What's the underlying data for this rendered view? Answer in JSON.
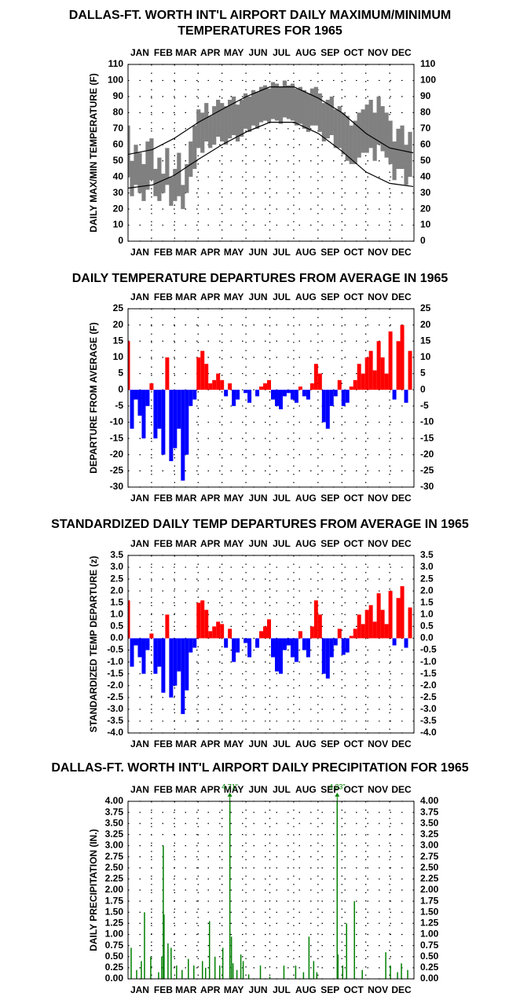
{
  "chart_data": [
    {
      "type": "line",
      "title": [
        "DALLAS-FT. WORTH INT'L AIRPORT DAILY MAXIMUM/MINIMUM",
        "TEMPERATURES FOR 1965"
      ],
      "y_label": "DAILY MAX/MIN TEMPERATURE (F)",
      "xlim": [
        1,
        366
      ],
      "xticks": [
        {
          "value": 16,
          "label": "JAN"
        },
        {
          "value": 46,
          "label": "FEB"
        },
        {
          "value": 75,
          "label": "MAR"
        },
        {
          "value": 106,
          "label": "APR"
        },
        {
          "value": 136,
          "label": "MAY"
        },
        {
          "value": 167,
          "label": "JUN"
        },
        {
          "value": 197,
          "label": "JUL"
        },
        {
          "value": 228,
          "label": "AUG"
        },
        {
          "value": 259,
          "label": "SEP"
        },
        {
          "value": 289,
          "label": "OCT"
        },
        {
          "value": 320,
          "label": "NOV"
        },
        {
          "value": 350,
          "label": "DEC"
        }
      ],
      "ylim": [
        0,
        110
      ],
      "yticks": [
        0,
        10,
        20,
        30,
        40,
        50,
        60,
        70,
        80,
        90,
        100,
        110
      ],
      "grid": true,
      "x": [
        1,
        6,
        11,
        16,
        21,
        26,
        31,
        36,
        41,
        46,
        51,
        56,
        61,
        66,
        71,
        76,
        81,
        86,
        91,
        96,
        101,
        106,
        111,
        116,
        121,
        126,
        131,
        136,
        141,
        146,
        151,
        156,
        161,
        166,
        171,
        176,
        181,
        186,
        191,
        196,
        201,
        206,
        211,
        216,
        221,
        226,
        231,
        236,
        241,
        246,
        251,
        256,
        261,
        266,
        271,
        276,
        281,
        286,
        291,
        296,
        301,
        306,
        311,
        316,
        321,
        326,
        331,
        336,
        341,
        346,
        351,
        356,
        361
      ],
      "band": {
        "color": "#808080",
        "high": [
          72,
          50,
          60,
          55,
          48,
          62,
          64,
          45,
          52,
          42,
          58,
          40,
          45,
          55,
          35,
          48,
          62,
          72,
          82,
          80,
          86,
          78,
          84,
          88,
          86,
          84,
          88,
          90,
          85,
          88,
          92,
          90,
          94,
          93,
          96,
          97,
          95,
          99,
          98,
          96,
          100,
          97,
          98,
          95,
          96,
          94,
          92,
          95,
          96,
          92,
          86,
          88,
          90,
          82,
          84,
          80,
          78,
          72,
          75,
          80,
          82,
          85,
          88,
          80,
          90,
          84,
          80,
          75,
          62,
          70,
          72,
          60,
          68
        ],
        "low": [
          40,
          28,
          35,
          30,
          25,
          32,
          38,
          28,
          25,
          30,
          35,
          22,
          25,
          28,
          20,
          30,
          40,
          45,
          58,
          55,
          62,
          58,
          60,
          65,
          62,
          60,
          64,
          66,
          62,
          65,
          70,
          68,
          72,
          70,
          74,
          75,
          74,
          76,
          75,
          73,
          77,
          76,
          75,
          72,
          73,
          70,
          68,
          72,
          72,
          68,
          62,
          64,
          66,
          58,
          58,
          54,
          50,
          48,
          48,
          52,
          55,
          55,
          58,
          50,
          60,
          56,
          52,
          48,
          38,
          45,
          45,
          35,
          40
        ]
      },
      "series": [
        {
          "color": "#000000",
          "x": [
            1,
            32,
            60,
            91,
            121,
            152,
            182,
            213,
            244,
            274,
            305,
            335,
            365
          ],
          "values": [
            54,
            57,
            64,
            74,
            82,
            90,
            96,
            96,
            89,
            80,
            67,
            58,
            55
          ]
        },
        {
          "color": "#000000",
          "x": [
            1,
            32,
            60,
            91,
            121,
            152,
            182,
            213,
            244,
            274,
            305,
            335,
            365
          ],
          "values": [
            33,
            35,
            41,
            51,
            60,
            68,
            74,
            74,
            67,
            56,
            43,
            36,
            34
          ]
        }
      ]
    },
    {
      "type": "bar",
      "title": [
        "DAILY TEMPERATURE DEPARTURES FROM AVERAGE IN 1965"
      ],
      "y_label": "DEPARTURE FROM AVERAGE (F)",
      "xlim": [
        1,
        366
      ],
      "xticks": [
        {
          "value": 16,
          "label": "JAN"
        },
        {
          "value": 46,
          "label": "FEB"
        },
        {
          "value": 75,
          "label": "MAR"
        },
        {
          "value": 106,
          "label": "APR"
        },
        {
          "value": 136,
          "label": "MAY"
        },
        {
          "value": 167,
          "label": "JUN"
        },
        {
          "value": 197,
          "label": "JUL"
        },
        {
          "value": 228,
          "label": "AUG"
        },
        {
          "value": 259,
          "label": "SEP"
        },
        {
          "value": 289,
          "label": "OCT"
        },
        {
          "value": 320,
          "label": "NOV"
        },
        {
          "value": 350,
          "label": "DEC"
        }
      ],
      "ylim": [
        -30,
        25
      ],
      "yticks": [
        -30,
        -25,
        -20,
        -15,
        -10,
        -5,
        0,
        5,
        10,
        15,
        20,
        25
      ],
      "grid": true,
      "colors": {
        "positive": "#ff0000",
        "negative": "#0000ff"
      },
      "x": [
        1,
        6,
        11,
        16,
        21,
        26,
        31,
        36,
        41,
        46,
        51,
        56,
        61,
        66,
        71,
        76,
        81,
        86,
        91,
        96,
        101,
        106,
        111,
        116,
        121,
        126,
        131,
        136,
        141,
        146,
        151,
        156,
        161,
        166,
        171,
        176,
        181,
        186,
        191,
        196,
        201,
        206,
        211,
        216,
        221,
        226,
        231,
        236,
        241,
        246,
        251,
        256,
        261,
        266,
        271,
        276,
        281,
        286,
        291,
        296,
        301,
        306,
        311,
        316,
        321,
        326,
        331,
        336,
        341,
        346,
        351,
        356,
        361
      ],
      "values": [
        15,
        -12,
        -3,
        -8,
        -15,
        -5,
        2,
        -15,
        -12,
        -20,
        10,
        -22,
        -18,
        -12,
        -28,
        -20,
        -5,
        -3,
        10,
        12,
        8,
        2,
        3,
        5,
        3,
        -2,
        2,
        -5,
        -3,
        0,
        -1,
        -4,
        0,
        -2,
        1,
        2,
        3,
        -3,
        -5,
        -6,
        -2,
        -1,
        -3,
        -4,
        1,
        -2,
        -3,
        2,
        8,
        5,
        -10,
        -12,
        -5,
        -2,
        3,
        -5,
        -4,
        1,
        3,
        8,
        5,
        10,
        12,
        6,
        15,
        10,
        5,
        18,
        -3,
        15,
        20,
        -4,
        12
      ]
    },
    {
      "type": "bar",
      "title": [
        "STANDARDIZED DAILY TEMP DEPARTURES FROM AVERAGE IN 1965"
      ],
      "y_label": "STANDARDIZED TEMP DEPARTURE (z)",
      "xlim": [
        1,
        366
      ],
      "xticks": [
        {
          "value": 16,
          "label": "JAN"
        },
        {
          "value": 46,
          "label": "FEB"
        },
        {
          "value": 75,
          "label": "MAR"
        },
        {
          "value": 106,
          "label": "APR"
        },
        {
          "value": 136,
          "label": "MAY"
        },
        {
          "value": 167,
          "label": "JUN"
        },
        {
          "value": 197,
          "label": "JUL"
        },
        {
          "value": 228,
          "label": "AUG"
        },
        {
          "value": 259,
          "label": "SEP"
        },
        {
          "value": 289,
          "label": "OCT"
        },
        {
          "value": 320,
          "label": "NOV"
        },
        {
          "value": 350,
          "label": "DEC"
        }
      ],
      "ylim": [
        -4,
        3.5
      ],
      "yticks": [
        {
          "value": -4,
          "label": "-4.0"
        },
        -3.5,
        {
          "value": -3,
          "label": "-3.0"
        },
        -2.5,
        {
          "value": -2,
          "label": "-2.0"
        },
        -1.5,
        {
          "value": -1,
          "label": "-1.0"
        },
        -0.5,
        {
          "value": 0,
          "label": "0.0"
        },
        0.5,
        {
          "value": 1,
          "label": "1.0"
        },
        1.5,
        {
          "value": 2,
          "label": "2.0"
        },
        2.5,
        {
          "value": 3,
          "label": "3.0"
        },
        3.5
      ],
      "grid": true,
      "colors": {
        "positive": "#ff0000",
        "negative": "#0000ff"
      },
      "x": [
        1,
        6,
        11,
        16,
        21,
        26,
        31,
        36,
        41,
        46,
        51,
        56,
        61,
        66,
        71,
        76,
        81,
        86,
        91,
        96,
        101,
        106,
        111,
        116,
        121,
        126,
        131,
        136,
        141,
        146,
        151,
        156,
        161,
        166,
        171,
        176,
        181,
        186,
        191,
        196,
        201,
        206,
        211,
        216,
        221,
        226,
        231,
        236,
        241,
        246,
        251,
        256,
        261,
        266,
        271,
        276,
        281,
        286,
        291,
        296,
        301,
        306,
        311,
        316,
        321,
        326,
        331,
        336,
        341,
        346,
        351,
        356,
        361
      ],
      "values": [
        1.6,
        -1.2,
        -0.3,
        -0.8,
        -1.5,
        -0.5,
        0.2,
        -1.5,
        -1.2,
        -2.3,
        1.0,
        -2.5,
        -2.0,
        -1.4,
        -3.2,
        -2.2,
        -0.6,
        -0.4,
        1.5,
        1.6,
        1.2,
        0.3,
        0.5,
        0.7,
        0.6,
        -0.4,
        0.4,
        -1.0,
        -0.6,
        0.0,
        -0.2,
        -0.8,
        0.0,
        -0.4,
        0.3,
        0.5,
        0.8,
        -0.8,
        -1.4,
        -1.5,
        -0.5,
        -0.3,
        -0.8,
        -1.0,
        0.3,
        -0.5,
        -0.8,
        0.5,
        1.6,
        1.0,
        -1.5,
        -1.7,
        -0.8,
        -0.3,
        0.4,
        -0.7,
        -0.6,
        0.1,
        0.4,
        1.0,
        0.6,
        1.2,
        1.4,
        0.7,
        1.9,
        1.2,
        0.6,
        2.0,
        -0.3,
        1.7,
        2.2,
        -0.4,
        1.3
      ]
    },
    {
      "type": "bar",
      "title": [
        "DALLAS-FT. WORTH INT'L AIRPORT DAILY PRECIPITATION FOR 1965"
      ],
      "y_label": "DAILY PRECIPITATION (IN.)",
      "xlim": [
        1,
        366
      ],
      "xticks": [
        {
          "value": 16,
          "label": "JAN"
        },
        {
          "value": 46,
          "label": "FEB"
        },
        {
          "value": 75,
          "label": "MAR"
        },
        {
          "value": 106,
          "label": "APR"
        },
        {
          "value": 136,
          "label": "MAY"
        },
        {
          "value": 167,
          "label": "JUN"
        },
        {
          "value": 197,
          "label": "JUL"
        },
        {
          "value": 228,
          "label": "AUG"
        },
        {
          "value": 259,
          "label": "SEP"
        },
        {
          "value": 289,
          "label": "OCT"
        },
        {
          "value": 320,
          "label": "NOV"
        },
        {
          "value": 350,
          "label": "DEC"
        }
      ],
      "ylim": [
        0,
        4
      ],
      "yticks": [
        {
          "value": 0,
          "label": "0.00"
        },
        {
          "value": 0.25,
          "label": "0.25"
        },
        {
          "value": 0.5,
          "label": "0.50"
        },
        {
          "value": 0.75,
          "label": "0.75"
        },
        {
          "value": 1,
          "label": "1.00"
        },
        {
          "value": 1.25,
          "label": "1.25"
        },
        {
          "value": 1.5,
          "label": "1.50"
        },
        {
          "value": 1.75,
          "label": "1.75"
        },
        {
          "value": 2,
          "label": "2.00"
        },
        {
          "value": 2.25,
          "label": "2.25"
        },
        {
          "value": 2.5,
          "label": "2.50"
        },
        {
          "value": 2.75,
          "label": "2.75"
        },
        {
          "value": 3,
          "label": "3.00"
        },
        {
          "value": 3.25,
          "label": "3.25"
        },
        {
          "value": 3.5,
          "label": "3.50"
        },
        {
          "value": 3.75,
          "label": "3.75"
        },
        {
          "value": 4,
          "label": "4.00"
        }
      ],
      "grid": true,
      "color": "#008000",
      "x": [
        5,
        12,
        18,
        22,
        30,
        40,
        44,
        46,
        47,
        52,
        56,
        63,
        70,
        78,
        85,
        96,
        100,
        105,
        112,
        118,
        122,
        131,
        133,
        135,
        140,
        145,
        148,
        155,
        170,
        182,
        200,
        215,
        225,
        232,
        238,
        242,
        268,
        269,
        275,
        280,
        290,
        300,
        330,
        336,
        345,
        350,
        358
      ],
      "values": [
        0.7,
        0.2,
        0.4,
        1.5,
        0.5,
        0.15,
        0.5,
        3.0,
        1.45,
        0.8,
        0.7,
        0.3,
        0.2,
        0.45,
        0.3,
        0.4,
        0.25,
        1.3,
        0.5,
        0.3,
        0.7,
        4.71,
        0.95,
        0.35,
        0.2,
        0.55,
        0.4,
        0.1,
        0.3,
        0.05,
        0.3,
        0.3,
        0.15,
        0.95,
        0.4,
        0.15,
        4.23,
        0.55,
        0.3,
        1.25,
        1.75,
        0.2,
        0.6,
        0.3,
        0.15,
        0.35,
        0.2
      ],
      "value_labels": [
        null,
        null,
        null,
        null,
        null,
        null,
        null,
        null,
        null,
        null,
        null,
        null,
        null,
        null,
        null,
        null,
        null,
        null,
        null,
        null,
        null,
        "4.71\"",
        null,
        null,
        null,
        null,
        null,
        null,
        null,
        null,
        null,
        null,
        null,
        null,
        null,
        null,
        "4.23\"",
        null,
        null,
        null,
        null,
        null,
        null,
        null,
        null,
        null,
        null
      ]
    }
  ]
}
